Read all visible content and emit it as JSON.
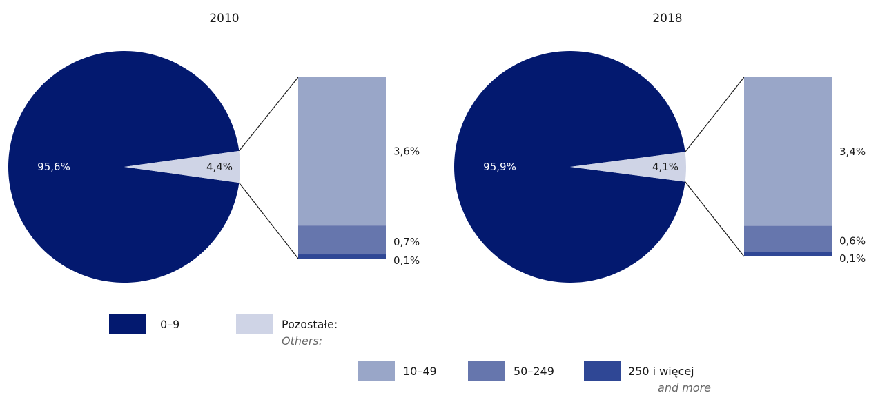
{
  "colors": {
    "c0_9": "#03196f",
    "others": "#cfd4e6",
    "c10_49": "#99a6c8",
    "c50_249": "#6676ad",
    "c250": "#2f4795"
  },
  "chart_data": [
    {
      "type": "pie",
      "title": "2010",
      "slices": [
        {
          "label": "0–9",
          "value": 95.6,
          "value_label": "95,6%"
        },
        {
          "label": "Pozostałe",
          "value": 4.4,
          "value_label": "4,4%"
        }
      ],
      "breakdown": [
        {
          "label": "10–49",
          "value": 3.6,
          "value_label": "3,6%"
        },
        {
          "label": "50–249",
          "value": 0.7,
          "value_label": "0,7%"
        },
        {
          "label": "250 i więcej",
          "value": 0.1,
          "value_label": "0,1%"
        }
      ]
    },
    {
      "type": "pie",
      "title": "2018",
      "slices": [
        {
          "label": "0–9",
          "value": 95.9,
          "value_label": "95,9%"
        },
        {
          "label": "Pozostałe",
          "value": 4.1,
          "value_label": "4,1%"
        }
      ],
      "breakdown": [
        {
          "label": "10–49",
          "value": 3.4,
          "value_label": "3,4%"
        },
        {
          "label": "50–249",
          "value": 0.6,
          "value_label": "0,6%"
        },
        {
          "label": "250 i więcej",
          "value": 0.1,
          "value_label": "0,1%"
        }
      ]
    }
  ],
  "legend": {
    "c0_9": "0–9",
    "others": "Pozostałe:",
    "others_en": "Others:",
    "c10_49": "10–49",
    "c50_249": "50–249",
    "c250": "250 i więcej",
    "c250_en": "and more"
  }
}
